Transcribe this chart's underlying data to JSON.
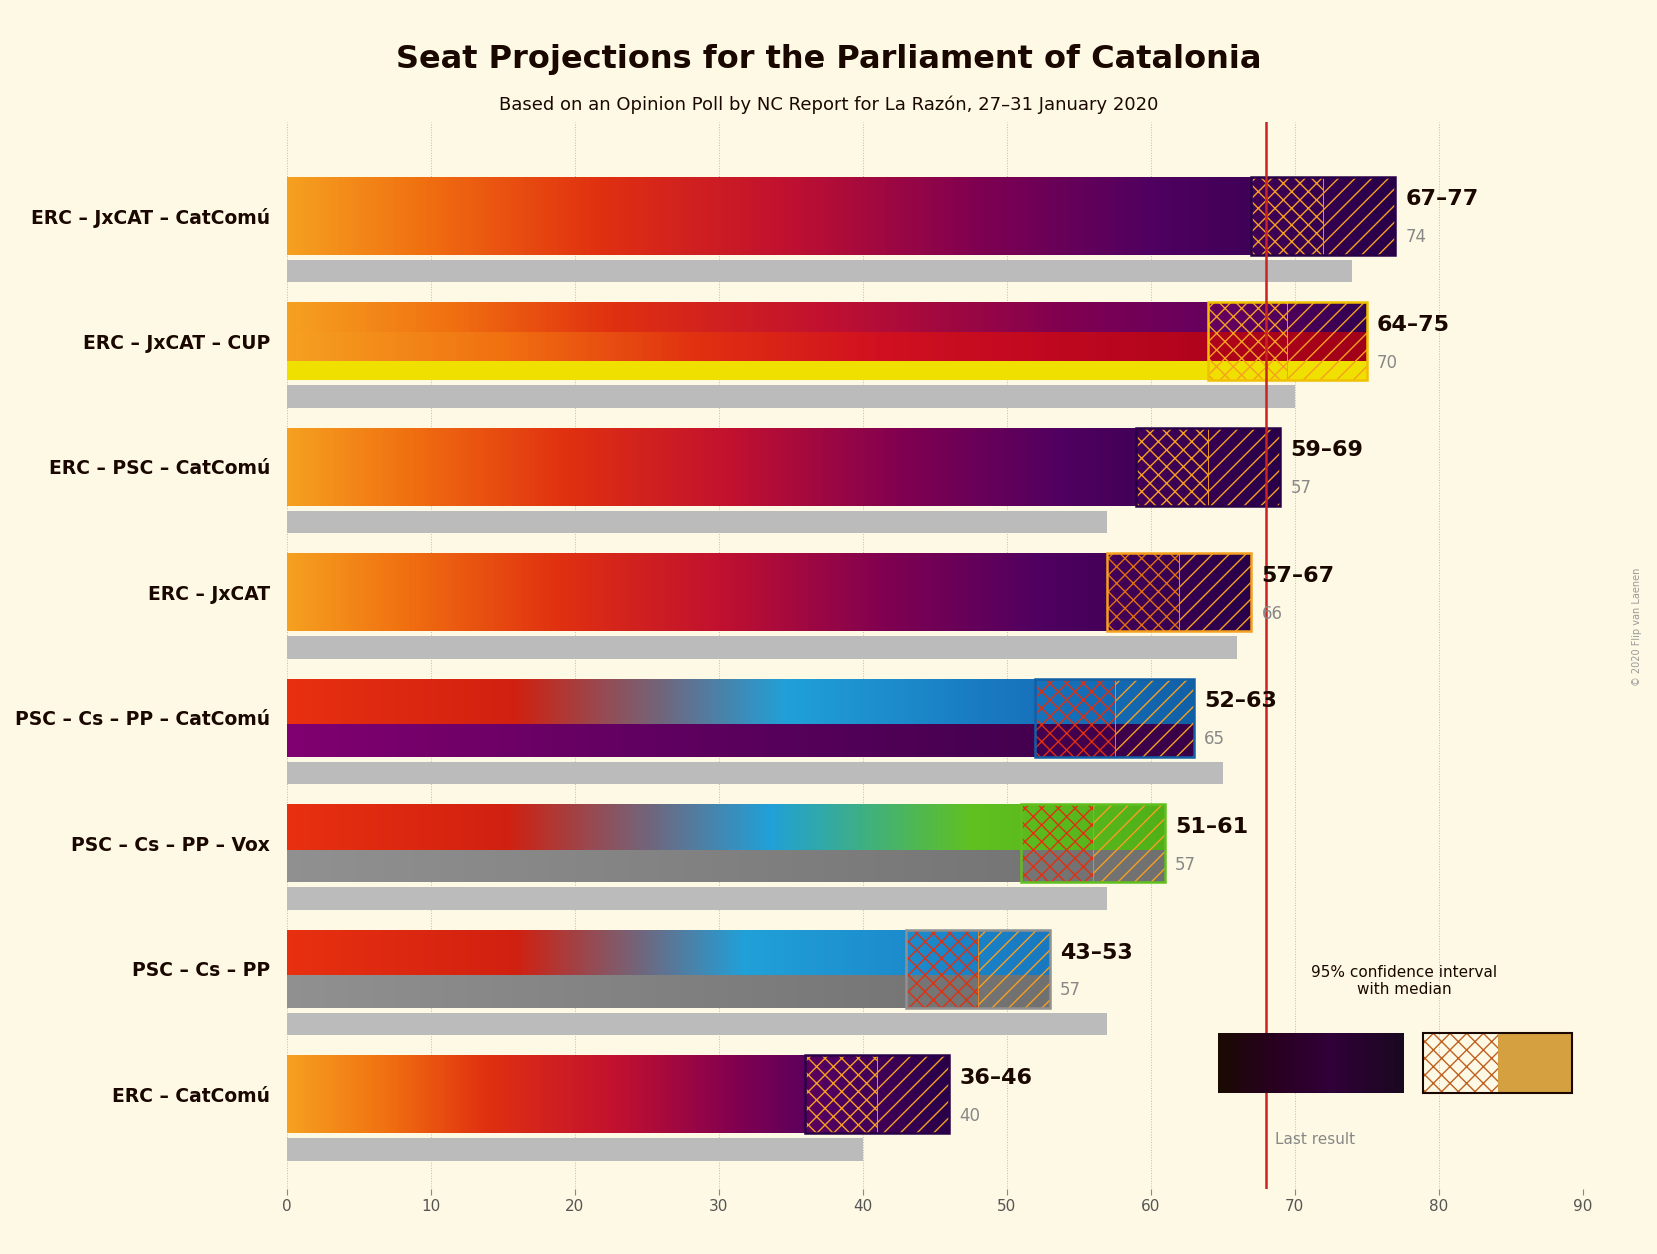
{
  "title": "Seat Projections for the Parliament of Catalonia",
  "subtitle": "Based on an Opinion Poll by NC Report for La Razón, 27–31 January 2020",
  "copyright": "© 2020 Flip van Laenen",
  "background_color": "#FEF9E4",
  "coalitions": [
    "ERC – JxCAT – CatComú",
    "ERC – JxCAT – CUP",
    "ERC – PSC – CatComú",
    "ERC – JxCAT",
    "PSC – Cs – PP – CatComú",
    "PSC – Cs – PP – Vox",
    "PSC – Cs – PP",
    "ERC – CatComú"
  ],
  "ci_low": [
    67,
    64,
    59,
    57,
    52,
    51,
    43,
    36
  ],
  "ci_high": [
    77,
    75,
    69,
    67,
    63,
    61,
    53,
    46
  ],
  "last_result": [
    74,
    70,
    57,
    66,
    65,
    57,
    57,
    40
  ],
  "range_labels": [
    "67–77",
    "64–75",
    "59–69",
    "57–67",
    "52–63",
    "51–61",
    "43–53",
    "36–46"
  ],
  "majority_line": 68,
  "x_ticks": [
    0,
    10,
    20,
    30,
    40,
    50,
    60,
    70,
    80,
    90
  ],
  "xlim": [
    0,
    90
  ],
  "grid_color": "#BBBBBB",
  "red_line_color": "#CC2222",
  "gray_bar_color": "#BBBBBB",
  "gradients": {
    "0": {
      "type": "erc_jxcat_catcomu",
      "stops": [
        [
          0.0,
          "#F5A020"
        ],
        [
          0.12,
          "#F07010"
        ],
        [
          0.28,
          "#E03010"
        ],
        [
          0.45,
          "#C01030"
        ],
        [
          0.62,
          "#800050"
        ],
        [
          0.78,
          "#500060"
        ],
        [
          1.0,
          "#280048"
        ]
      ]
    },
    "1": {
      "type": "erc_jxcat_cup",
      "stops_top": [
        [
          0.0,
          "#F5A020"
        ],
        [
          0.15,
          "#F07010"
        ],
        [
          0.3,
          "#E03010"
        ],
        [
          0.5,
          "#C01030"
        ],
        [
          0.72,
          "#800050"
        ],
        [
          0.88,
          "#600060"
        ],
        [
          1.0,
          "#300050"
        ]
      ],
      "stops_mid": [
        [
          0.0,
          "#F5A020"
        ],
        [
          0.2,
          "#F07010"
        ],
        [
          0.38,
          "#E03010"
        ],
        [
          0.55,
          "#D01020"
        ],
        [
          0.7,
          "#C00820"
        ],
        [
          1.0,
          "#A00018"
        ]
      ],
      "stops_bot": [
        [
          0.0,
          "#F0E000"
        ],
        [
          1.0,
          "#F0E000"
        ]
      ]
    },
    "2": {
      "type": "erc_psc_catcomu",
      "stops": [
        [
          0.0,
          "#F5A020"
        ],
        [
          0.12,
          "#F07010"
        ],
        [
          0.28,
          "#E03010"
        ],
        [
          0.45,
          "#C01030"
        ],
        [
          0.62,
          "#800050"
        ],
        [
          0.78,
          "#500060"
        ],
        [
          1.0,
          "#280048"
        ]
      ]
    },
    "3": {
      "type": "erc_jxcat",
      "stops": [
        [
          0.0,
          "#F5A020"
        ],
        [
          0.12,
          "#F07010"
        ],
        [
          0.28,
          "#E03010"
        ],
        [
          0.45,
          "#C01030"
        ],
        [
          0.62,
          "#800050"
        ],
        [
          0.78,
          "#500060"
        ],
        [
          1.0,
          "#280048"
        ]
      ]
    },
    "4": {
      "type": "psc_cs_pp_catcomu",
      "stops_top": [
        [
          0.0,
          "#E83010"
        ],
        [
          0.25,
          "#D02010"
        ],
        [
          0.55,
          "#20A0D8"
        ],
        [
          0.78,
          "#1878C0"
        ],
        [
          1.0,
          "#1060A8"
        ]
      ],
      "stops_bot": [
        [
          0.0,
          "#800070"
        ],
        [
          0.4,
          "#600060"
        ],
        [
          1.0,
          "#380048"
        ]
      ]
    },
    "5": {
      "type": "psc_cs_pp_vox",
      "stops_top": [
        [
          0.0,
          "#E83010"
        ],
        [
          0.25,
          "#D02010"
        ],
        [
          0.55,
          "#20A0D8"
        ],
        [
          0.78,
          "#60C020"
        ],
        [
          1.0,
          "#50B018"
        ]
      ],
      "stops_bot": [
        [
          0.0,
          "#909090"
        ],
        [
          1.0,
          "#707070"
        ]
      ]
    },
    "6": {
      "type": "psc_cs_pp",
      "stops_top": [
        [
          0.0,
          "#E83010"
        ],
        [
          0.3,
          "#D02010"
        ],
        [
          0.6,
          "#20A0D8"
        ],
        [
          1.0,
          "#1878C0"
        ]
      ],
      "stops_bot": [
        [
          0.0,
          "#909090"
        ],
        [
          1.0,
          "#707070"
        ]
      ]
    },
    "7": {
      "type": "erc_catcomu",
      "stops": [
        [
          0.0,
          "#F5A020"
        ],
        [
          0.15,
          "#F07010"
        ],
        [
          0.3,
          "#E03010"
        ],
        [
          0.5,
          "#C01030"
        ],
        [
          0.68,
          "#800050"
        ],
        [
          0.82,
          "#500060"
        ],
        [
          1.0,
          "#280048"
        ]
      ]
    }
  },
  "ci_colors": {
    "0": {
      "left_bg": "#280048",
      "right_bg": "#F5A020",
      "left_hatch": "#F5A020",
      "right_hatch": "#F5A020",
      "border": "#280048"
    },
    "1": {
      "left_bg": "#F0E000",
      "right_bg": "#F5A020",
      "left_hatch": "#F5A020",
      "right_hatch": "#F5A020",
      "border": "#F0C000"
    },
    "2": {
      "left_bg": "#280048",
      "right_bg": "#F5A020",
      "left_hatch": "#F5A020",
      "right_hatch": "#F5A020",
      "border": "#280048"
    },
    "3": {
      "left_bg": "#F5A020",
      "right_bg": "#F5A020",
      "left_hatch": "#E07010",
      "right_hatch": "#F5A020",
      "border": "#F5A020"
    },
    "4": {
      "left_bg": "#20A0D8",
      "right_bg": "#F5A020",
      "left_hatch": "#E03010",
      "right_hatch": "#F5A020",
      "border": "#1060A8"
    },
    "5": {
      "left_bg": "#20A0D8",
      "right_bg": "#60C020",
      "left_hatch": "#E03010",
      "right_hatch": "#F5A020",
      "border": "#60C020"
    },
    "6": {
      "left_bg": "#20A0D8",
      "right_bg": "#F5A020",
      "left_hatch": "#E03010",
      "right_hatch": "#F5A020",
      "border": "#909090"
    },
    "7": {
      "left_bg": "#280048",
      "right_bg": "#F5A020",
      "left_hatch": "#F5A020",
      "right_hatch": "#F5A020",
      "border": "#280048"
    }
  }
}
